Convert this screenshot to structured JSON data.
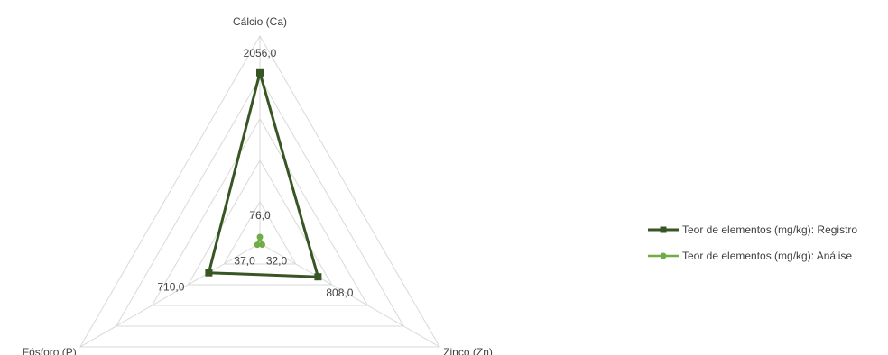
{
  "chart_data": {
    "type": "radar",
    "categories": [
      "Cálcio (Ca)",
      "Zinco (Zn)",
      "Fósforo (P)"
    ],
    "max": 2500,
    "ring_step": 500,
    "series": [
      {
        "name": "Teor de elementos (mg/kg): Registro",
        "values": [
          2056.0,
          808.0,
          710.0
        ],
        "labels": [
          "2056,0",
          "808,0",
          "710,0"
        ],
        "color": "#375623",
        "marker": "square"
      },
      {
        "name": "Teor de elementos (mg/kg): Análise",
        "values": [
          76.0,
          32.0,
          37.0
        ],
        "labels": [
          "76,0",
          "32,0",
          "37,0"
        ],
        "color": "#70ad47",
        "marker": "circle"
      }
    ],
    "legend": "right",
    "grid": true,
    "grid_color": "#d9d9d9"
  }
}
